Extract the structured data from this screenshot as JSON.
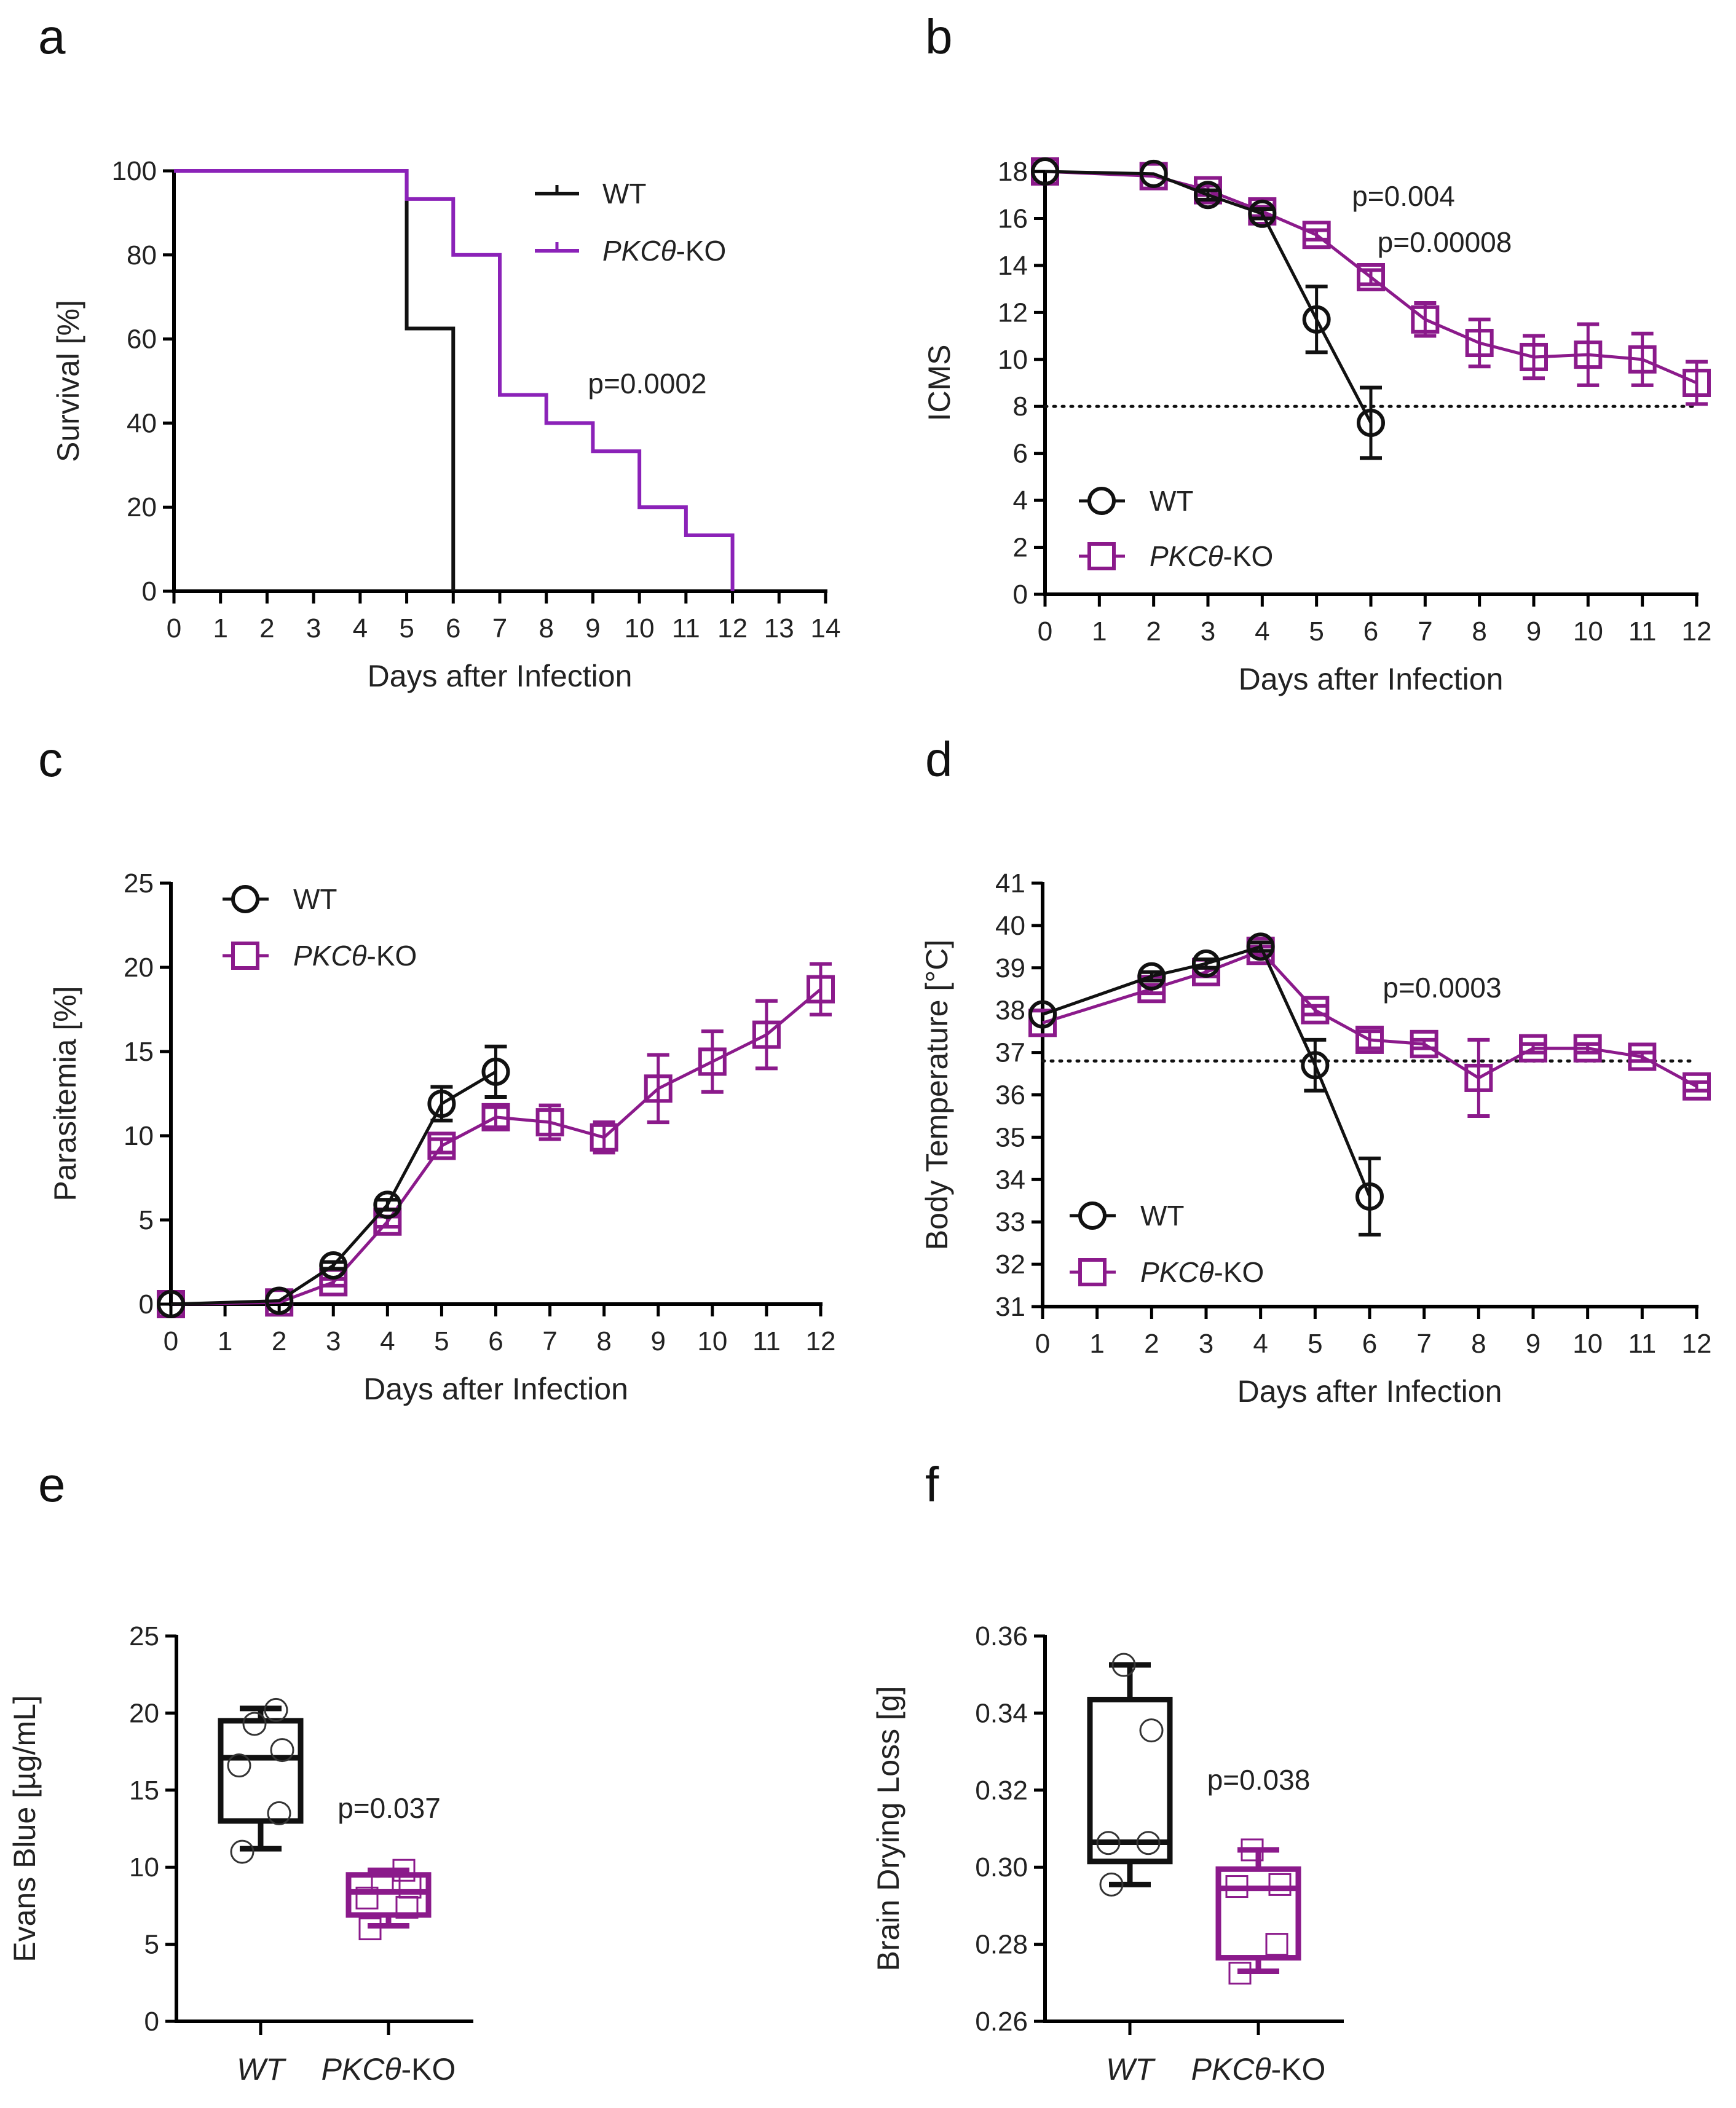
{
  "colors": {
    "wt": "#111111",
    "ko": "#8B1A8B",
    "ko_survival": "#8B22B8",
    "text": "#222222"
  },
  "panels": [
    "a",
    "b",
    "c",
    "d",
    "e",
    "f"
  ],
  "chart_data": [
    {
      "id": "a",
      "type": "line",
      "subtype": "kaplan-meier",
      "title": "",
      "xlabel": "Days after Infection",
      "ylabel": "Survival [%]",
      "xlim": [
        0,
        14
      ],
      "ylim": [
        0,
        100
      ],
      "xticks": [
        0,
        1,
        2,
        3,
        4,
        5,
        6,
        7,
        8,
        9,
        10,
        11,
        12,
        13,
        14
      ],
      "yticks": [
        0,
        20,
        40,
        60,
        80,
        100
      ],
      "legend": {
        "placement": "top-right",
        "entries": [
          "WT",
          "PKCθ-KO"
        ]
      },
      "annotations": [
        "p=0.0002"
      ],
      "series": [
        {
          "name": "WT",
          "steps": [
            [
              0,
              100
            ],
            [
              5,
              62.5
            ],
            [
              6,
              0
            ]
          ]
        },
        {
          "name": "PKCθ-KO",
          "steps": [
            [
              0,
              100
            ],
            [
              5,
              93.3
            ],
            [
              6,
              80
            ],
            [
              7,
              46.7
            ],
            [
              8,
              40
            ],
            [
              9,
              33.3
            ],
            [
              10,
              20
            ],
            [
              11,
              13.3
            ],
            [
              12,
              0
            ]
          ]
        }
      ]
    },
    {
      "id": "b",
      "type": "line",
      "title": "",
      "xlabel": "Days after Infection",
      "ylabel": "ICMS",
      "xlim": [
        0,
        12
      ],
      "ylim": [
        0,
        18
      ],
      "xticks": [
        0,
        1,
        2,
        3,
        4,
        5,
        6,
        7,
        8,
        9,
        10,
        11,
        12
      ],
      "yticks": [
        0,
        2,
        4,
        6,
        8,
        10,
        12,
        14,
        16,
        18
      ],
      "reference_line": {
        "y": 8,
        "style": "dotted"
      },
      "legend": {
        "placement": "bottom-left",
        "entries": [
          "WT",
          "PKCθ-KO"
        ]
      },
      "annotations": [
        "p=0.004",
        "p=0.00008"
      ],
      "series": [
        {
          "name": "WT",
          "marker": "circle",
          "x": [
            0,
            2,
            3,
            4,
            5,
            6
          ],
          "y": [
            18,
            17.9,
            17.0,
            16.2,
            11.7,
            7.3
          ],
          "err": [
            0,
            0,
            0.2,
            0.2,
            1.4,
            1.5
          ]
        },
        {
          "name": "PKCθ-KO",
          "marker": "square",
          "x": [
            0,
            2,
            3,
            4,
            5,
            6,
            7,
            8,
            9,
            10,
            11,
            12
          ],
          "y": [
            18,
            17.8,
            17.2,
            16.3,
            15.3,
            13.5,
            11.7,
            10.7,
            10.1,
            10.2,
            10.0,
            9.0
          ],
          "err": [
            0,
            0,
            0.2,
            0.2,
            0.2,
            0.3,
            0.7,
            1.0,
            0.9,
            1.3,
            1.1,
            0.9
          ]
        }
      ]
    },
    {
      "id": "c",
      "type": "line",
      "title": "",
      "xlabel": "Days after Infection",
      "ylabel": "Parasitemia [%]",
      "xlim": [
        0,
        12
      ],
      "ylim": [
        0,
        25
      ],
      "xticks": [
        0,
        1,
        2,
        3,
        4,
        5,
        6,
        7,
        8,
        9,
        10,
        11,
        12
      ],
      "yticks": [
        0,
        5,
        10,
        15,
        20,
        25
      ],
      "legend": {
        "placement": "top-left",
        "entries": [
          "WT",
          "PKCθ-KO"
        ]
      },
      "annotations": [],
      "series": [
        {
          "name": "WT",
          "marker": "circle",
          "x": [
            0,
            2,
            3,
            4,
            5,
            6
          ],
          "y": [
            0,
            0.2,
            2.3,
            5.9,
            11.9,
            13.8
          ],
          "err": [
            0,
            0,
            0.2,
            0.3,
            1.0,
            1.5
          ]
        },
        {
          "name": "PKCθ-KO",
          "marker": "square",
          "x": [
            0,
            2,
            3,
            4,
            5,
            6,
            7,
            8,
            9,
            10,
            11,
            12
          ],
          "y": [
            0,
            0.1,
            1.3,
            4.9,
            9.4,
            11.1,
            10.8,
            9.9,
            12.8,
            14.4,
            16.0,
            18.7
          ],
          "err": [
            0,
            0,
            0.2,
            0.3,
            0.4,
            0.6,
            1.0,
            0.9,
            2.0,
            1.8,
            2.0,
            1.5
          ]
        }
      ]
    },
    {
      "id": "d",
      "type": "line",
      "title": "",
      "xlabel": "Days after Infection",
      "ylabel": "Body Temperature [°C]",
      "xlim": [
        0,
        12
      ],
      "ylim": [
        31,
        41
      ],
      "xticks": [
        0,
        1,
        2,
        3,
        4,
        5,
        6,
        7,
        8,
        9,
        10,
        11,
        12
      ],
      "yticks": [
        31,
        32,
        33,
        34,
        35,
        36,
        37,
        38,
        39,
        40,
        41
      ],
      "reference_line": {
        "y": 36.8,
        "style": "dotted"
      },
      "legend": {
        "placement": "bottom-left",
        "entries": [
          "WT",
          "PKCθ-KO"
        ]
      },
      "annotations": [
        "p=0.0003"
      ],
      "series": [
        {
          "name": "WT",
          "marker": "circle",
          "x": [
            0,
            2,
            3,
            4,
            5,
            6
          ],
          "y": [
            37.9,
            38.8,
            39.1,
            39.5,
            36.7,
            33.6
          ],
          "err": [
            0,
            0.1,
            0.1,
            0.1,
            0.6,
            0.9
          ]
        },
        {
          "name": "PKCθ-KO",
          "marker": "square",
          "x": [
            0,
            2,
            3,
            4,
            5,
            6,
            7,
            8,
            9,
            10,
            11,
            12
          ],
          "y": [
            37.7,
            38.5,
            38.9,
            39.4,
            38.0,
            37.3,
            37.2,
            36.4,
            37.1,
            37.1,
            36.9,
            36.2
          ],
          "err": [
            0,
            0.1,
            0.1,
            0.1,
            0.1,
            0.2,
            0.1,
            0.9,
            0.1,
            0.1,
            0.1,
            0.1
          ]
        }
      ]
    },
    {
      "id": "e",
      "type": "box",
      "title": "",
      "xlabel": "",
      "ylabel": "Evans Blue [µg/mL]",
      "ylim": [
        0,
        25
      ],
      "yticks": [
        0,
        5,
        10,
        15,
        20,
        25
      ],
      "categories": [
        "WT",
        "PKCθ-KO"
      ],
      "annotations": [
        "p=0.037"
      ],
      "series": [
        {
          "name": "WT",
          "min": 11.2,
          "q1": 13.0,
          "median": 17.1,
          "q3": 19.5,
          "max": 20.3,
          "points": [
            11.0,
            13.5,
            16.6,
            17.6,
            19.3,
            20.2
          ]
        },
        {
          "name": "PKCθ-KO",
          "min": 6.2,
          "q1": 6.9,
          "median": 8.4,
          "q3": 9.5,
          "max": 9.8,
          "points": [
            6.0,
            7.4,
            8.0,
            8.7,
            9.0,
            9.8
          ]
        }
      ]
    },
    {
      "id": "f",
      "type": "box",
      "title": "",
      "xlabel": "",
      "ylabel": "Brain Drying Loss [g]",
      "ylim": [
        0.26,
        0.36
      ],
      "yticks": [
        0.26,
        0.28,
        0.3,
        0.32,
        0.34,
        0.36
      ],
      "categories": [
        "WT",
        "PKCθ-KO"
      ],
      "annotations": [
        "p=0.038"
      ],
      "series": [
        {
          "name": "WT",
          "min": 0.2955,
          "q1": 0.3015,
          "median": 0.3065,
          "q3": 0.3435,
          "max": 0.3525,
          "points": [
            0.2955,
            0.3063,
            0.3063,
            0.3355,
            0.3525
          ]
        },
        {
          "name": "PKCθ-KO",
          "min": 0.273,
          "q1": 0.2765,
          "median": 0.2945,
          "q3": 0.2995,
          "max": 0.3045,
          "points": [
            0.2725,
            0.28,
            0.295,
            0.2955,
            0.3045
          ]
        }
      ]
    }
  ]
}
